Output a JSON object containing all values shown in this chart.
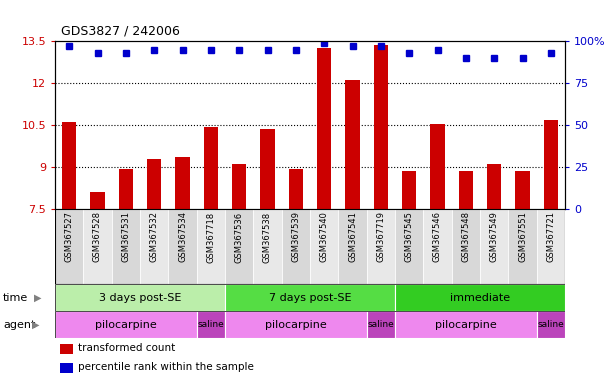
{
  "title": "GDS3827 / 242006",
  "samples": [
    "GSM367527",
    "GSM367528",
    "GSM367531",
    "GSM367532",
    "GSM367534",
    "GSM367718",
    "GSM367536",
    "GSM367538",
    "GSM367539",
    "GSM367540",
    "GSM367541",
    "GSM367719",
    "GSM367545",
    "GSM367546",
    "GSM367548",
    "GSM367549",
    "GSM367551",
    "GSM367721"
  ],
  "bar_values": [
    10.6,
    8.1,
    8.95,
    9.3,
    9.35,
    10.45,
    9.1,
    10.35,
    8.95,
    13.25,
    12.1,
    13.35,
    8.85,
    10.55,
    8.85,
    9.1,
    8.85,
    10.7
  ],
  "dot_values": [
    97,
    93,
    93,
    95,
    95,
    95,
    95,
    95,
    95,
    99,
    97,
    97,
    93,
    95,
    90,
    90,
    90,
    93
  ],
  "bar_color": "#cc0000",
  "dot_color": "#0000cc",
  "ymin": 7.5,
  "ymax": 13.5,
  "yticks": [
    7.5,
    9.0,
    10.5,
    12.0,
    13.5
  ],
  "ytick_labels": [
    "7.5",
    "9",
    "10.5",
    "12",
    "13.5"
  ],
  "y2min": 0,
  "y2max": 100,
  "y2ticks": [
    0,
    25,
    50,
    75,
    100
  ],
  "y2tick_labels": [
    "0",
    "25",
    "50",
    "75",
    "100%"
  ],
  "hlines": [
    9.0,
    10.5,
    12.0
  ],
  "time_groups": [
    {
      "label": "3 days post-SE",
      "start": 0,
      "end": 5,
      "color": "#bbeeaa"
    },
    {
      "label": "7 days post-SE",
      "start": 6,
      "end": 11,
      "color": "#55dd44"
    },
    {
      "label": "immediate",
      "start": 12,
      "end": 17,
      "color": "#33cc22"
    }
  ],
  "agent_groups": [
    {
      "label": "pilocarpine",
      "start": 0,
      "end": 4,
      "color": "#ee88ee"
    },
    {
      "label": "saline",
      "start": 5,
      "end": 5,
      "color": "#bb44bb"
    },
    {
      "label": "pilocarpine",
      "start": 6,
      "end": 10,
      "color": "#ee88ee"
    },
    {
      "label": "saline",
      "start": 11,
      "end": 11,
      "color": "#bb44bb"
    },
    {
      "label": "pilocarpine",
      "start": 12,
      "end": 16,
      "color": "#ee88ee"
    },
    {
      "label": "saline",
      "start": 17,
      "end": 17,
      "color": "#bb44bb"
    }
  ],
  "legend_items": [
    {
      "label": "transformed count",
      "color": "#cc0000"
    },
    {
      "label": "percentile rank within the sample",
      "color": "#0000cc"
    }
  ]
}
